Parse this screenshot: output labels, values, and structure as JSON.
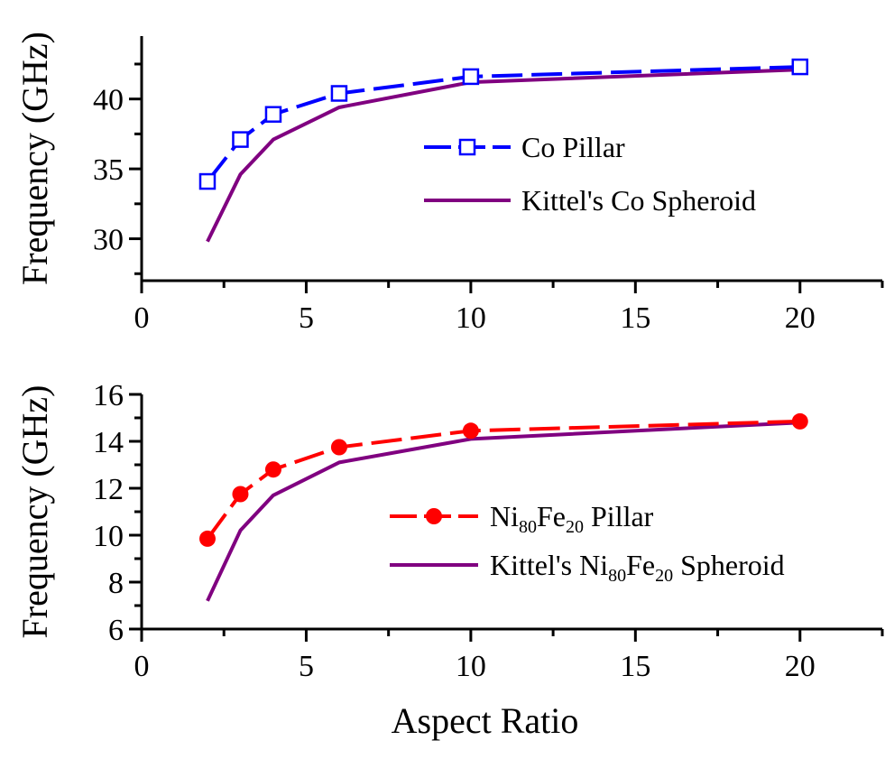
{
  "chart_data": [
    {
      "type": "line",
      "title": "",
      "xlabel": "",
      "ylabel": "Frequency (GHz)",
      "xlim": [
        0,
        22.5
      ],
      "ylim": [
        27,
        44.5
      ],
      "xticks": [
        0,
        5,
        10,
        15,
        20
      ],
      "yticks": [
        30,
        35,
        40
      ],
      "grid": false,
      "legend_position": "right",
      "series": [
        {
          "name": "Co Pillar",
          "color": "#0000ff",
          "marker": "open-square",
          "line_style": "dashed",
          "x": [
            2,
            3,
            4,
            6,
            10,
            20
          ],
          "values": [
            34.1,
            37.1,
            38.9,
            40.4,
            41.6,
            42.3
          ]
        },
        {
          "name": "Kittel's Co Spheroid",
          "color": "#800080",
          "marker": "none",
          "line_style": "solid",
          "x": [
            2,
            3,
            4,
            6,
            10,
            20
          ],
          "values": [
            29.8,
            34.6,
            37.1,
            39.4,
            41.2,
            42.1
          ]
        }
      ]
    },
    {
      "type": "line",
      "title": "",
      "xlabel": "Aspect Ratio",
      "ylabel": "Frequency (GHz)",
      "xlim": [
        0,
        22.5
      ],
      "ylim": [
        6,
        16
      ],
      "xticks": [
        0,
        5,
        10,
        15,
        20
      ],
      "yticks": [
        6,
        8,
        10,
        12,
        14,
        16
      ],
      "grid": false,
      "legend_position": "right",
      "series": [
        {
          "name": "Ni80Fe20 Pillar",
          "name_parts": [
            "Ni",
            "80",
            "Fe",
            "20",
            " Pillar"
          ],
          "color": "#ff0000",
          "marker": "filled-circle",
          "line_style": "dashed",
          "x": [
            2,
            3,
            4,
            6,
            10,
            20
          ],
          "values": [
            9.85,
            11.75,
            12.8,
            13.75,
            14.45,
            14.85
          ]
        },
        {
          "name": "Kittel's Ni80Fe20 Spheroid",
          "name_parts": [
            "Kittel's Ni",
            "80",
            "Fe",
            "20",
            " Spheroid"
          ],
          "color": "#800080",
          "marker": "none",
          "line_style": "solid",
          "x": [
            2,
            3,
            4,
            6,
            10,
            20
          ],
          "values": [
            7.2,
            10.2,
            11.7,
            13.1,
            14.1,
            14.8
          ]
        }
      ]
    }
  ]
}
